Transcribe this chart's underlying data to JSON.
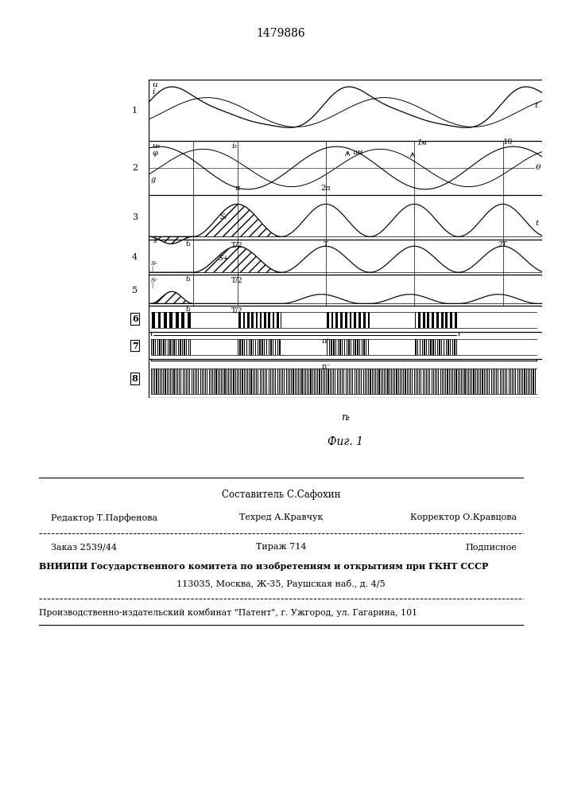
{
  "title": "1479886",
  "bg_color": "#ffffff",
  "composer": "Составитель С.Сафохин",
  "editor": "Редактор Т.Парфенова",
  "techred": "Техред А.Кравчук",
  "corrector": "Корректор О.Кравцова",
  "order": "Заказ 2539/44",
  "tirazh": "Тираж 714",
  "podpisnoe": "Подписное",
  "vniiipi_line1": "ВНИИПИ Государственного комитета по изобретениям и открытиям при ГКНТ СССР",
  "vniiipi_line2": "113035, Москва, Ж-35, Раушская наб., д. 4/5",
  "patent_line": "Производственно-издательский комбинат \"Патент\", г. Ужгород, ул. Гагарина, 101"
}
